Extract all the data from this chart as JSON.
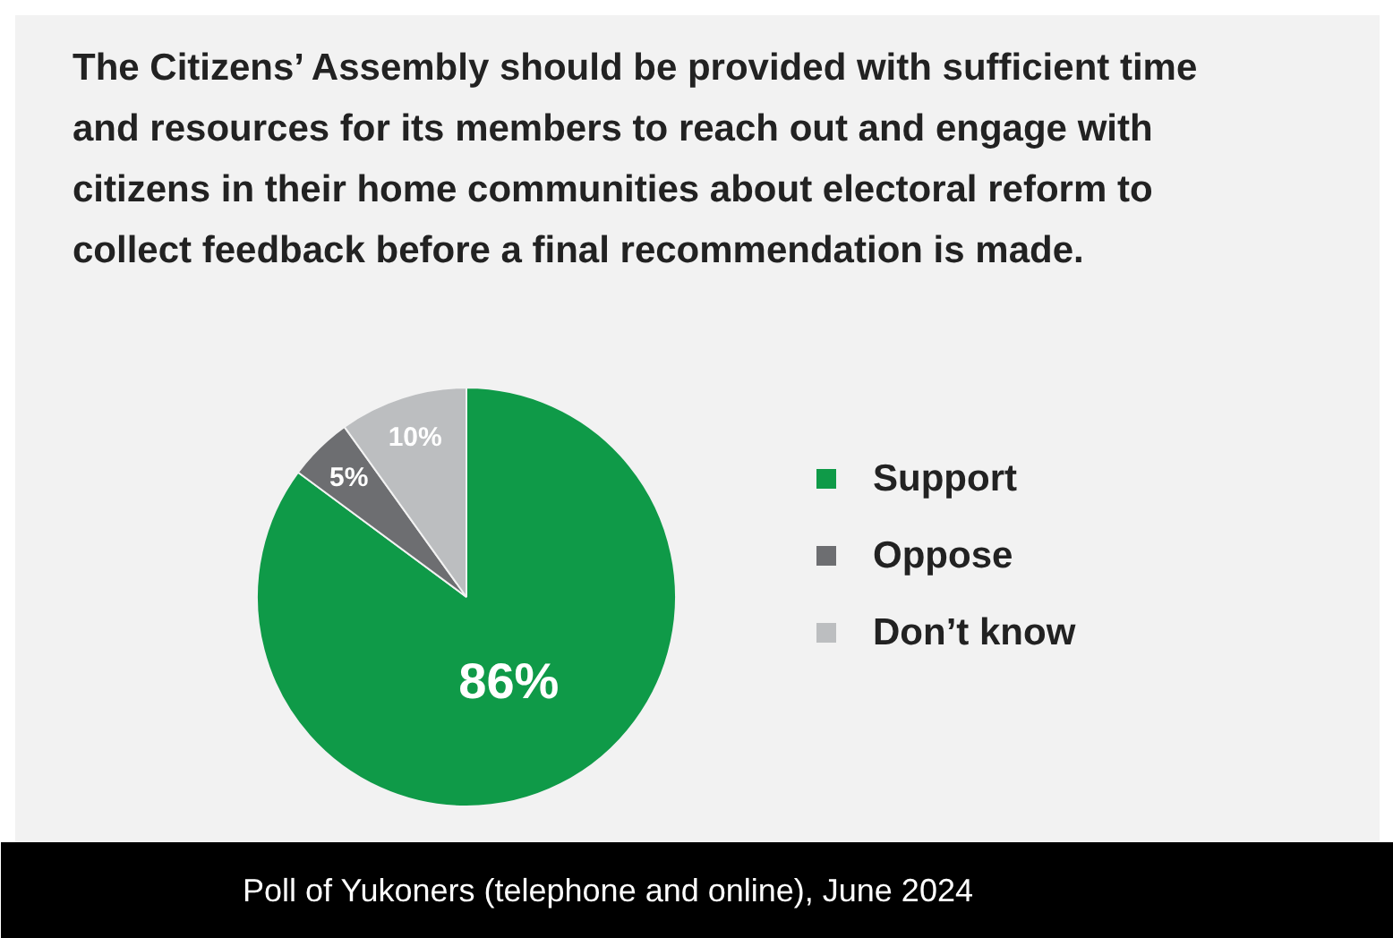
{
  "chart_data": {
    "type": "pie",
    "title": "The Citizens’ Assembly should be provided with sufficient time and resources for its members to reach out and engage with citizens in their home communities about electoral reform to collect feedback before a final recommendation is made.",
    "categories": [
      "Support",
      "Oppose",
      "Don’t know"
    ],
    "values": [
      86,
      5,
      10
    ],
    "colors": [
      "#0f9a48",
      "#6d6e71",
      "#bcbec0"
    ],
    "value_labels": [
      "86%",
      "5%",
      "10%"
    ],
    "legend": "right",
    "annotations": [
      "Poll of Yukoners (telephone and online), June 2024"
    ]
  }
}
